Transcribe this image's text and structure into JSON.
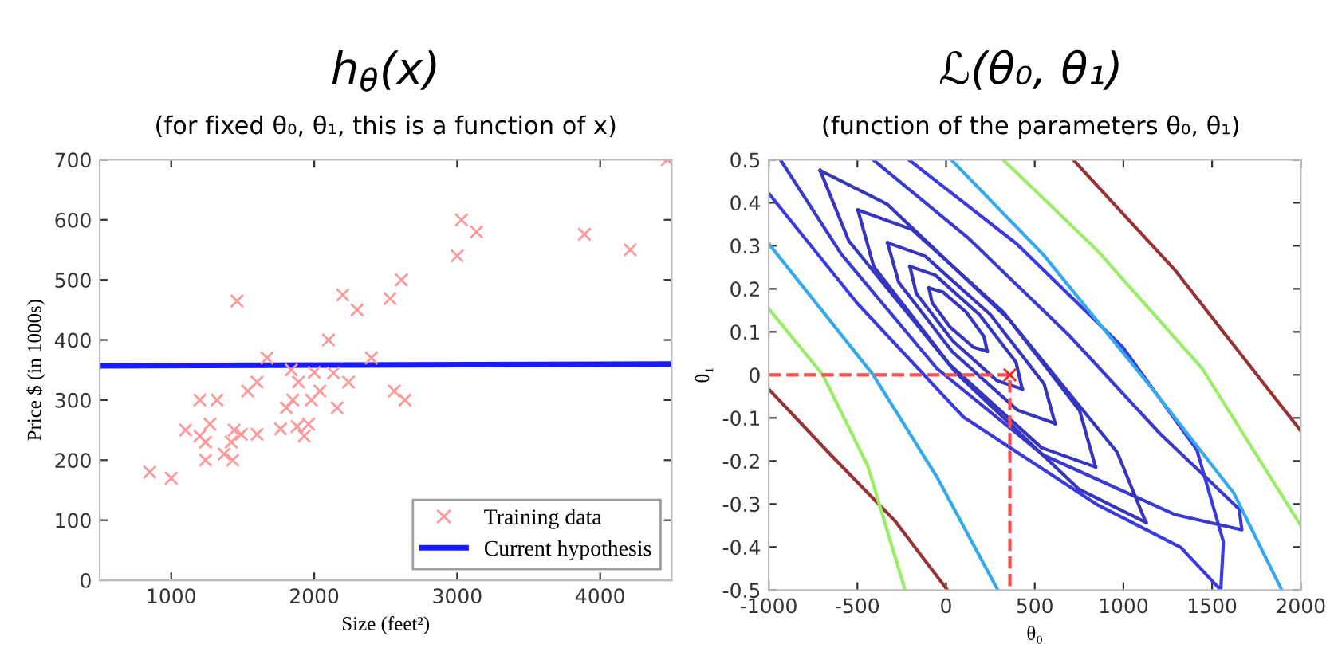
{
  "chart_data": [
    {
      "type": "scatter",
      "title": "h$_{θ}$(x)",
      "subtitle": "(for fixed θ₀, θ₁, this is a function of x)",
      "xlabel": "Size (feet²)",
      "ylabel": "Price $ (in 1000s)",
      "xlim": [
        500,
        4500
      ],
      "ylim": [
        0,
        700
      ],
      "xticks": [
        1000,
        2000,
        3000,
        4000
      ],
      "yticks": [
        0,
        100,
        200,
        300,
        400,
        500,
        600,
        700
      ],
      "legend": "bottom right",
      "series": [
        {
          "name": "Training data",
          "color": "#ff9999",
          "marker": "cross",
          "x": [
            850,
            1000,
            1100,
            1200,
            1200,
            1240,
            1240,
            1270,
            1320,
            1370,
            1420,
            1430,
            1440,
            1460,
            1490,
            1535,
            1600,
            1600,
            1670,
            1765,
            1805,
            1840,
            1850,
            1880,
            1890,
            1930,
            1960,
            1980,
            2000,
            2040,
            2100,
            2135,
            2160,
            2200,
            2240,
            2300,
            2400,
            2530,
            2560,
            2610,
            2635,
            3000,
            3030,
            3135,
            3890,
            4210,
            4470
          ],
          "values": [
            180,
            170,
            250,
            300,
            240,
            230,
            200,
            260,
            300,
            210,
            230,
            200,
            250,
            465,
            243,
            315,
            243,
            330,
            370,
            252,
            287,
            350,
            300,
            256,
            330,
            240,
            260,
            300,
            346,
            315,
            400,
            345,
            287,
            475,
            330,
            450,
            370,
            469,
            315,
            500,
            300,
            540,
            600,
            580,
            576,
            550,
            700
          ]
        },
        {
          "type": "line",
          "name": "Current hypothesis",
          "color": "#1a1aff",
          "x": [
            500,
            4500
          ],
          "values": [
            357,
            360
          ]
        }
      ]
    },
    {
      "type": "line",
      "title": "ℒ(θ₀, θ₁)",
      "subtitle": "(function of the parameters θ₀, θ₁)",
      "xlabel": "θ₀",
      "ylabel": "θ₁",
      "xlim": [
        -1000,
        2000
      ],
      "ylim": [
        -0.5,
        0.5
      ],
      "xticks": [
        -1000,
        -500,
        0,
        500,
        1000,
        1500,
        2000
      ],
      "yticks": [
        -0.5,
        -0.4,
        -0.3,
        -0.2,
        -0.1,
        0,
        0.1,
        0.2,
        0.3,
        0.4,
        0.5
      ],
      "series": [
        {
          "color": "#993333",
          "x": [
            -1000,
            -650,
            -291,
            8
          ],
          "values": [
            -0.033,
            -0.186,
            -0.338,
            -0.5
          ]
        },
        {
          "color": "#99ee66",
          "x": [
            -1000,
            -695,
            -441,
            -231
          ],
          "values": [
            0.154,
            0,
            -0.212,
            -0.5
          ]
        },
        {
          "color": "#33aaee",
          "x": [
            -1000,
            -411,
            -52,
            292
          ],
          "values": [
            0.305,
            0,
            -0.237,
            -0.5
          ]
        },
        {
          "color": "#3a3ae0",
          "x": [
            -1000,
            -500,
            98,
            846,
            1324,
            1549,
            1564,
            1414,
            995,
            397,
            -210
          ],
          "values": [
            0.422,
            0.166,
            -0.098,
            -0.3,
            -0.401,
            -0.5,
            -0.388,
            -0.174,
            0.065,
            0.305,
            0.5
          ]
        },
        {
          "color": "#3a3ad0",
          "x": [
            -934,
            -590,
            -52,
            547,
            1294,
            1668,
            1653,
            1205,
            696,
            128,
            -411
          ],
          "values": [
            0.5,
            0.28,
            0.015,
            -0.186,
            -0.325,
            -0.36,
            -0.312,
            -0.136,
            0.091,
            0.317,
            0.5
          ]
        },
        {
          "color": "#3535c0",
          "x": [
            -710,
            -333,
            361,
            965,
            1127
          ],
          "values": [
            0.475,
            0.397,
            0.126,
            -0.18,
            -0.343
          ]
        },
        {
          "color": "#3535c0",
          "x": [
            -710,
            -548,
            56,
            750,
            1127
          ],
          "values": [
            0.475,
            0.311,
            0.005,
            -0.266,
            -0.343
          ]
        },
        {
          "color": "#3535c0",
          "x": [
            -497,
            -192,
            325,
            753,
            843
          ],
          "values": [
            0.383,
            0.338,
            0.145,
            -0.083,
            -0.214
          ]
        },
        {
          "color": "#3535c0",
          "x": [
            -497,
            -408,
            20,
            538,
            843
          ],
          "values": [
            0.383,
            0.252,
            0.024,
            -0.169,
            -0.214
          ]
        },
        {
          "color": "#3535c0",
          "x": [
            -330,
            -118,
            250,
            553,
            615
          ],
          "values": [
            0.307,
            0.276,
            0.14,
            -0.021,
            -0.113
          ]
        },
        {
          "color": "#3535c0",
          "x": [
            -330,
            -267,
            35,
            403,
            615
          ],
          "values": [
            0.307,
            0.215,
            0.054,
            -0.082,
            -0.113
          ]
        },
        {
          "color": "#3535c0",
          "x": [
            -204,
            -61,
            188,
            394,
            430
          ],
          "values": [
            0.252,
            0.232,
            0.14,
            0.03,
            -0.033
          ]
        },
        {
          "color": "#3535c0",
          "x": [
            -204,
            -168,
            38,
            286,
            430
          ],
          "values": [
            0.252,
            0.189,
            0.079,
            -0.013,
            -0.033
          ]
        },
        {
          "color": "#3535c0",
          "x": [
            -97,
            -19,
            113,
            214,
            232
          ],
          "values": [
            0.202,
            0.193,
            0.146,
            0.089,
            0.055
          ]
        },
        {
          "color": "#3535c0",
          "x": [
            -97,
            -79,
            23,
            155,
            232
          ],
          "values": [
            0.202,
            0.168,
            0.111,
            0.064,
            0.055
          ]
        },
        {
          "color": "#99ee66",
          "x": [
            322,
            846,
            1444,
            2000
          ],
          "values": [
            0.5,
            0.292,
            0.015,
            -0.35
          ]
        },
        {
          "color": "#33aaee",
          "x": [
            29,
            547,
            1145,
            1623,
            1893
          ],
          "values": [
            0.5,
            0.28,
            -0.023,
            -0.275,
            -0.5
          ]
        },
        {
          "color": "#993333",
          "x": [
            717,
            1294,
            2000
          ],
          "values": [
            0.5,
            0.242,
            -0.13
          ]
        },
        {
          "color": "#ff4d4d",
          "line_style": "dashed",
          "x": [
            -1000,
            360,
            360
          ],
          "values": [
            0,
            0,
            -0.5
          ]
        },
        {
          "type": "scatter",
          "color": "#ff2020",
          "marker": "cross",
          "x": [
            360
          ],
          "values": [
            0
          ]
        }
      ]
    }
  ]
}
